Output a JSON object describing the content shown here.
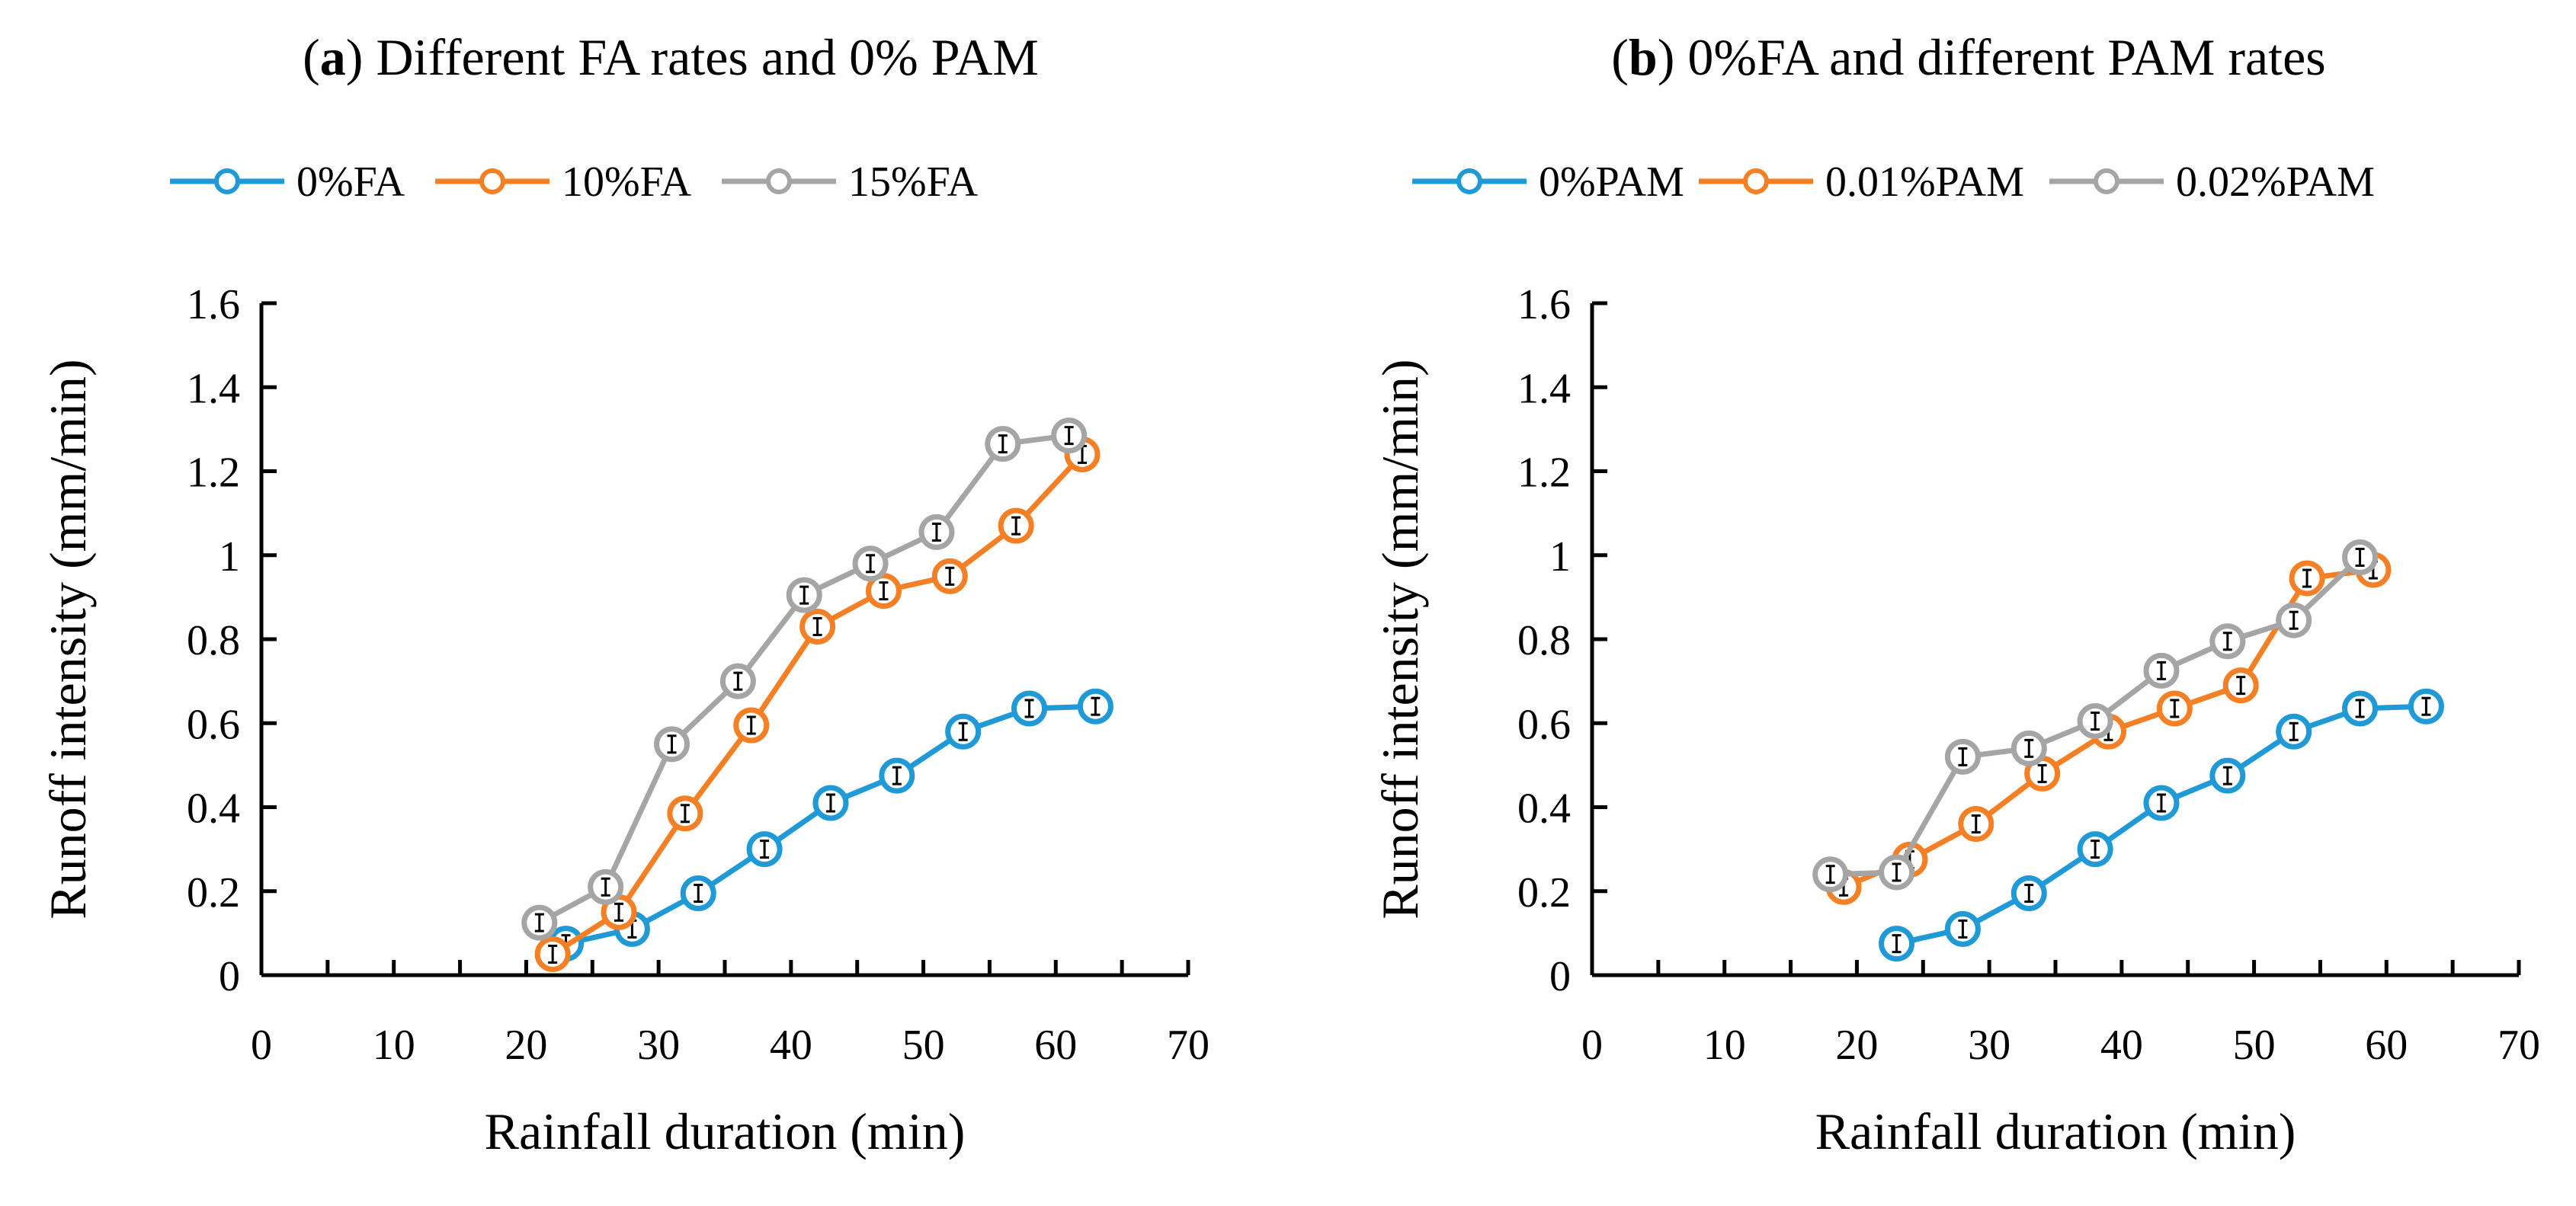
{
  "chart_data": [
    {
      "type": "line",
      "panel_letter": "a",
      "title": "Different FA rates and 0% PAM",
      "xlabel": "Rainfall duration (min)",
      "ylabel": "Runoff intensity (mm/min)",
      "xlim": [
        0,
        70
      ],
      "ylim": [
        0,
        1.6
      ],
      "xticks": [
        0,
        10,
        20,
        30,
        40,
        50,
        60,
        70
      ],
      "yticks": [
        0,
        0.2,
        0.4,
        0.6,
        0.8,
        1,
        1.2,
        1.4,
        1.6
      ],
      "grid": false,
      "legend_position": "top",
      "series": [
        {
          "name": "0%FA",
          "color": "#1f9ad6",
          "x": [
            23,
            28,
            33,
            38,
            43,
            48,
            53,
            58,
            63
          ],
          "y": [
            0.075,
            0.11,
            0.195,
            0.3,
            0.41,
            0.475,
            0.58,
            0.635,
            0.64
          ]
        },
        {
          "name": "10%FA",
          "color": "#f57f25",
          "x": [
            22,
            27,
            32,
            37,
            42,
            47,
            52,
            57,
            62
          ],
          "y": [
            0.05,
            0.15,
            0.385,
            0.595,
            0.83,
            0.915,
            0.95,
            1.07,
            1.24
          ]
        },
        {
          "name": "15%FA",
          "color": "#a5a5a5",
          "x": [
            21,
            26,
            31,
            36,
            41,
            46,
            51,
            56,
            61
          ],
          "y": [
            0.125,
            0.21,
            0.55,
            0.7,
            0.905,
            0.98,
            1.055,
            1.265,
            1.285
          ]
        }
      ]
    },
    {
      "type": "line",
      "panel_letter": "b",
      "title": "0%FA and different PAM rates",
      "xlabel": "Rainfall duration (min)",
      "ylabel": "Runoff intensity (mm/min)",
      "xlim": [
        0,
        70
      ],
      "ylim": [
        0,
        1.6
      ],
      "xticks": [
        0,
        10,
        20,
        30,
        40,
        50,
        60,
        70
      ],
      "yticks": [
        0,
        0.2,
        0.4,
        0.6,
        0.8,
        1,
        1.2,
        1.4,
        1.6
      ],
      "grid": false,
      "legend_position": "top",
      "series": [
        {
          "name": "0%PAM",
          "color": "#1f9ad6",
          "x": [
            23,
            28,
            33,
            38,
            43,
            48,
            53,
            58,
            63
          ],
          "y": [
            0.075,
            0.11,
            0.195,
            0.3,
            0.41,
            0.475,
            0.58,
            0.635,
            0.64
          ]
        },
        {
          "name": "0.01%PAM",
          "color": "#f57f25",
          "x": [
            19,
            24,
            29,
            34,
            39,
            44,
            49,
            54,
            59
          ],
          "y": [
            0.21,
            0.275,
            0.36,
            0.48,
            0.58,
            0.635,
            0.69,
            0.945,
            0.965
          ]
        },
        {
          "name": "0.02%PAM",
          "color": "#a5a5a5",
          "x": [
            18,
            23,
            28,
            33,
            38,
            43,
            48,
            53,
            58
          ],
          "y": [
            0.24,
            0.245,
            0.52,
            0.54,
            0.605,
            0.725,
            0.795,
            0.845,
            0.995
          ]
        }
      ]
    }
  ]
}
